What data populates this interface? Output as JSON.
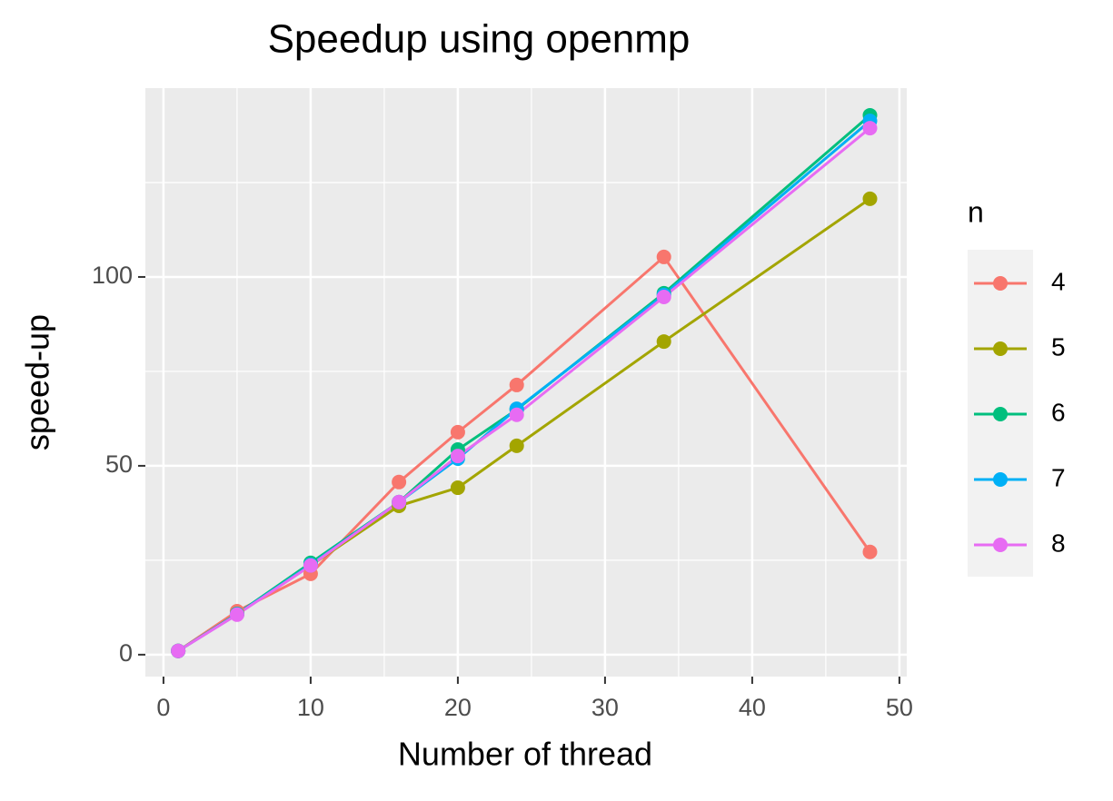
{
  "chart_data": {
    "type": "line",
    "title": "Speedup using openmp",
    "x_label": "Number of thread",
    "y_label": "speed-up",
    "legend_title": "n",
    "xlim": [
      -1.23,
      50.5
    ],
    "ylim": [
      -5.8,
      150
    ],
    "xticks": [
      0,
      10,
      20,
      30,
      40,
      50
    ],
    "yticks": [
      0,
      50,
      100
    ],
    "grid": true,
    "legend_position": "right",
    "x": [
      1,
      5,
      10,
      16,
      20,
      24,
      34,
      48
    ],
    "series": [
      {
        "name": "4",
        "color": "#F8766D",
        "values": [
          1,
          11.5,
          21.4,
          45.7,
          58.9,
          71.4,
          105.3,
          27.2
        ]
      },
      {
        "name": "5",
        "color": "#A3A500",
        "values": [
          1,
          10.8,
          23.6,
          39.4,
          44.2,
          55.3,
          82.9,
          120.7
        ]
      },
      {
        "name": "6",
        "color": "#00BF7D",
        "values": [
          1,
          10.8,
          24.3,
          40.4,
          54.3,
          64.9,
          95.7,
          142.8
        ]
      },
      {
        "name": "7",
        "color": "#00B0F6",
        "values": [
          1,
          10.7,
          23.8,
          40.4,
          51.9,
          65.1,
          95.2,
          141.3
        ]
      },
      {
        "name": "8",
        "color": "#E76BF3",
        "values": [
          1,
          10.6,
          23.6,
          40.4,
          52.6,
          63.5,
          94.7,
          139.4
        ]
      }
    ]
  }
}
